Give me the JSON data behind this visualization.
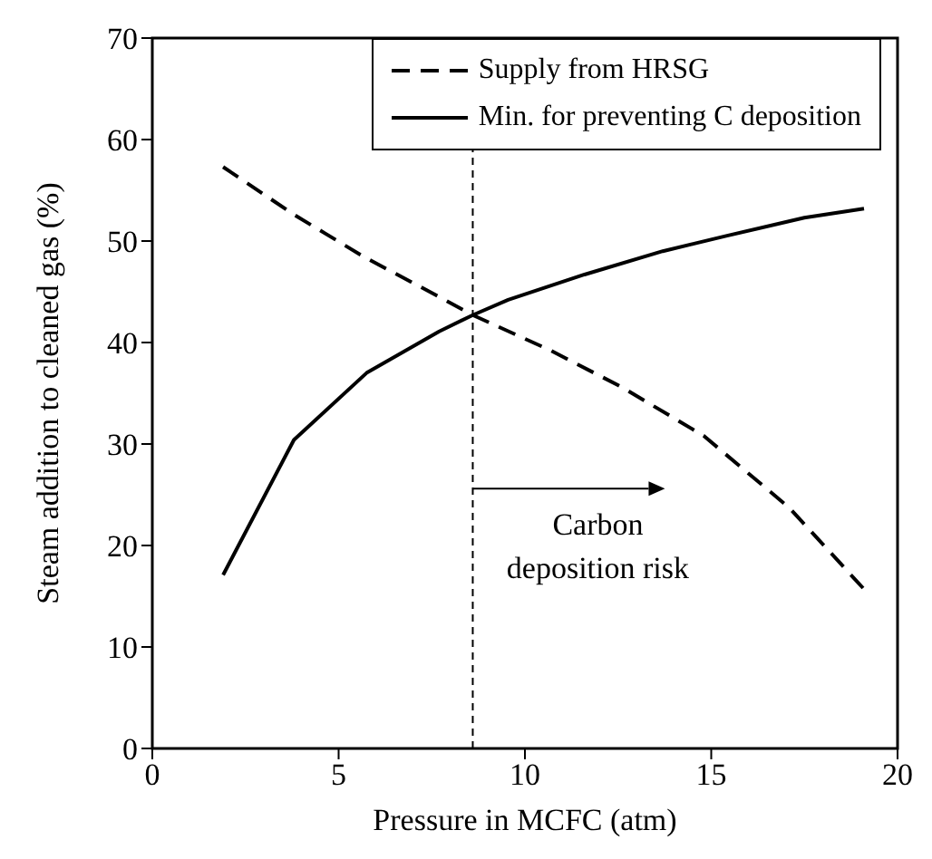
{
  "chart_data": {
    "type": "line",
    "xlabel": "Pressure in MCFC (atm)",
    "ylabel": "Steam addition to cleaned gas (%)",
    "xlim": [
      0,
      20
    ],
    "xticks": [
      0,
      5,
      10,
      15,
      20
    ],
    "ylim": [
      0,
      70
    ],
    "yticks": [
      0,
      10,
      20,
      30,
      40,
      50,
      60,
      70
    ],
    "series": [
      {
        "name": "Supply from HRSG",
        "color": "#000000",
        "line_style": "dashed",
        "x": [
          1.9,
          3.8,
          5.7,
          7.7,
          8.6,
          10.7,
          12.6,
          14.8,
          17.1,
          19.1
        ],
        "values": [
          57.3,
          52.6,
          48.4,
          44.5,
          42.7,
          39.2,
          35.6,
          30.8,
          23.7,
          15.7
        ]
      },
      {
        "name": "Min. for preventing C deposition",
        "color": "#000000",
        "line_style": "solid",
        "x": [
          1.9,
          3.8,
          5.75,
          7.7,
          8.6,
          9.55,
          11.6,
          13.7,
          15.4,
          17.5,
          19.1
        ],
        "values": [
          17.1,
          30.4,
          37.0,
          41.1,
          42.7,
          44.2,
          46.7,
          49.0,
          50.5,
          52.3,
          53.2
        ]
      }
    ],
    "ref_lines": [
      {
        "axis": "x",
        "value": 8.6,
        "color": "#000000",
        "line_style": "dashed"
      }
    ],
    "annotations": [
      {
        "text": "Carbon deposition risk",
        "x": 8.6,
        "y": 25.6
      }
    ],
    "grid": false,
    "legend": "top right",
    "marker": "none"
  }
}
